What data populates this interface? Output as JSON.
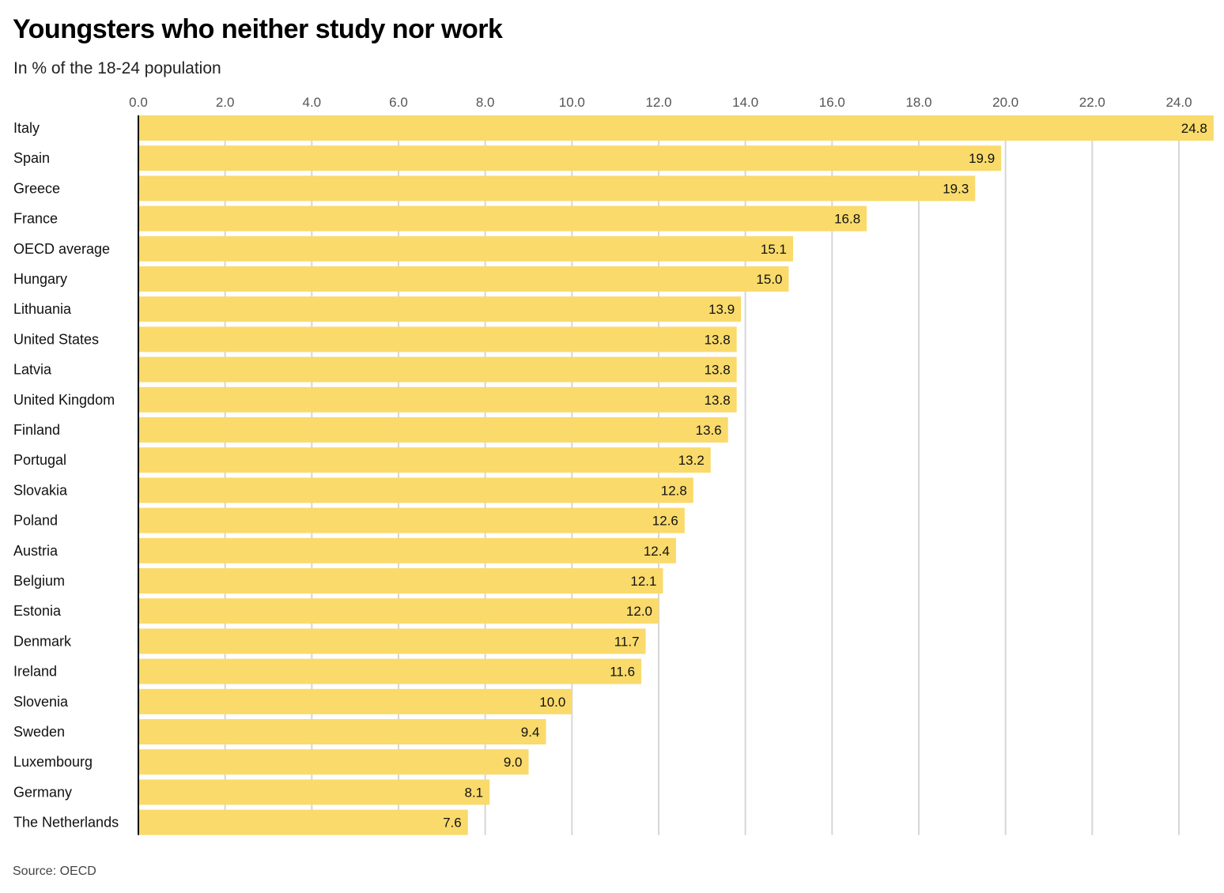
{
  "chart_data": {
    "type": "bar",
    "orientation": "horizontal",
    "title": "Youngsters who neither study nor work",
    "subtitle": "In % of the 18-24 population",
    "source": "Source: OECD",
    "xlabel": "",
    "ylabel": "",
    "xlim": [
      0,
      24.8
    ],
    "x_ticks": [
      "0.0",
      "2.0",
      "4.0",
      "6.0",
      "8.0",
      "10.0",
      "12.0",
      "14.0",
      "16.0",
      "18.0",
      "20.0",
      "22.0",
      "24.0"
    ],
    "grid": true,
    "bar_color": "#F9DA6B",
    "categories": [
      "Italy",
      "Spain",
      "Greece",
      "France",
      "OECD average",
      "Hungary",
      "Lithuania",
      "United States",
      "Latvia",
      "United Kingdom",
      "Finland",
      "Portugal",
      "Slovakia",
      "Poland",
      "Austria",
      "Belgium",
      "Estonia",
      "Denmark",
      "Ireland",
      "Slovenia",
      "Sweden",
      "Luxembourg",
      "Germany",
      "The Netherlands"
    ],
    "values": [
      24.8,
      19.9,
      19.3,
      16.8,
      15.1,
      15.0,
      13.9,
      13.8,
      13.8,
      13.8,
      13.6,
      13.2,
      12.8,
      12.6,
      12.4,
      12.1,
      12.0,
      11.7,
      11.6,
      10.0,
      9.4,
      9.0,
      8.1,
      7.6
    ],
    "value_labels": [
      "24.8",
      "19.9",
      "19.3",
      "16.8",
      "15.1",
      "15.0",
      "13.9",
      "13.8",
      "13.8",
      "13.8",
      "13.6",
      "13.2",
      "12.8",
      "12.6",
      "12.4",
      "12.1",
      "12.0",
      "11.7",
      "11.6",
      "10.0",
      "9.4",
      "9.0",
      "8.1",
      "7.6"
    ]
  }
}
